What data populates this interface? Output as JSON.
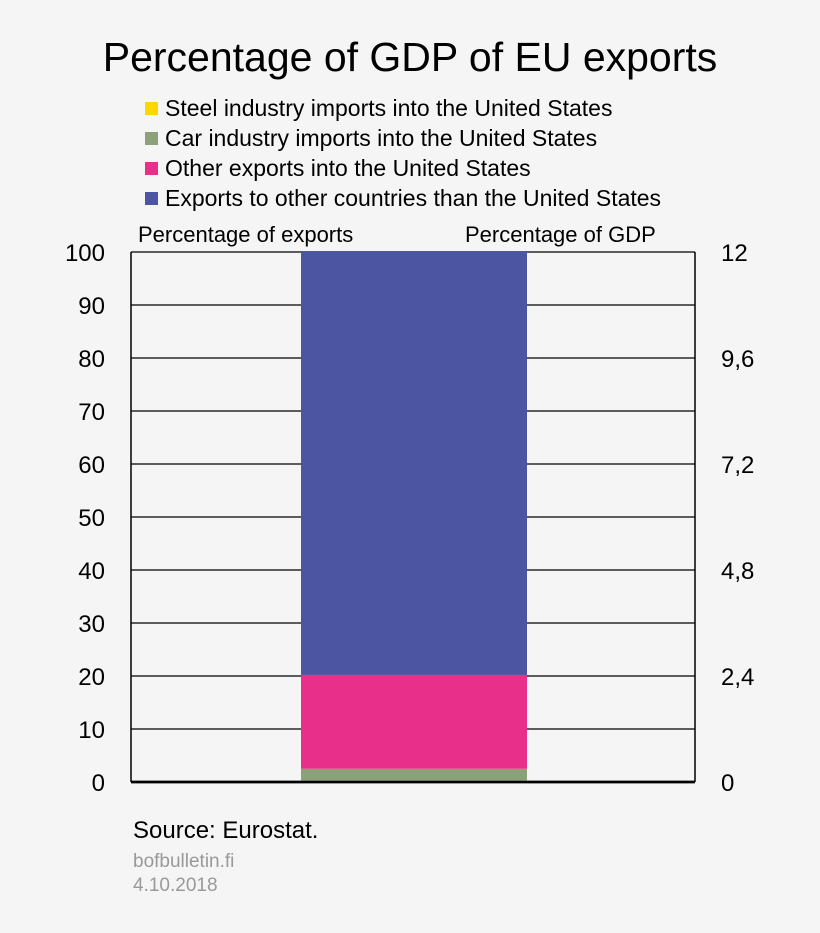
{
  "chart_data": {
    "type": "bar",
    "stacked": true,
    "title": "Percentage of GDP of EU exports",
    "categories": [
      ""
    ],
    "series": [
      {
        "name": "Steel industry imports into the United States",
        "color": "#ffd700",
        "values": [
          0.1
        ]
      },
      {
        "name": "Car industry imports into the United States",
        "color": "#8ca07a",
        "values": [
          2.4
        ]
      },
      {
        "name": "Other exports into the United States",
        "color": "#e8308a",
        "values": [
          17.7
        ]
      },
      {
        "name": "Exports to other countries than the United States",
        "color": "#4b55a2",
        "values": [
          79.8
        ]
      }
    ],
    "ylabel_left": "Percentage of exports",
    "ylabel_right": "Percentage of GDP",
    "ylim_left": [
      0,
      100
    ],
    "ylim_right": [
      0,
      12
    ],
    "yticks_left": [
      "0",
      "10",
      "20",
      "30",
      "40",
      "50",
      "60",
      "70",
      "80",
      "90",
      "100"
    ],
    "yticks_right": [
      "0",
      "2,4",
      "4,8",
      "7,2",
      "9,6",
      "12"
    ],
    "grid": true,
    "legend": "top"
  },
  "footer": {
    "source": "Source: Eurostat.",
    "site": "bofbulletin.fi",
    "date": "4.10.2018"
  }
}
